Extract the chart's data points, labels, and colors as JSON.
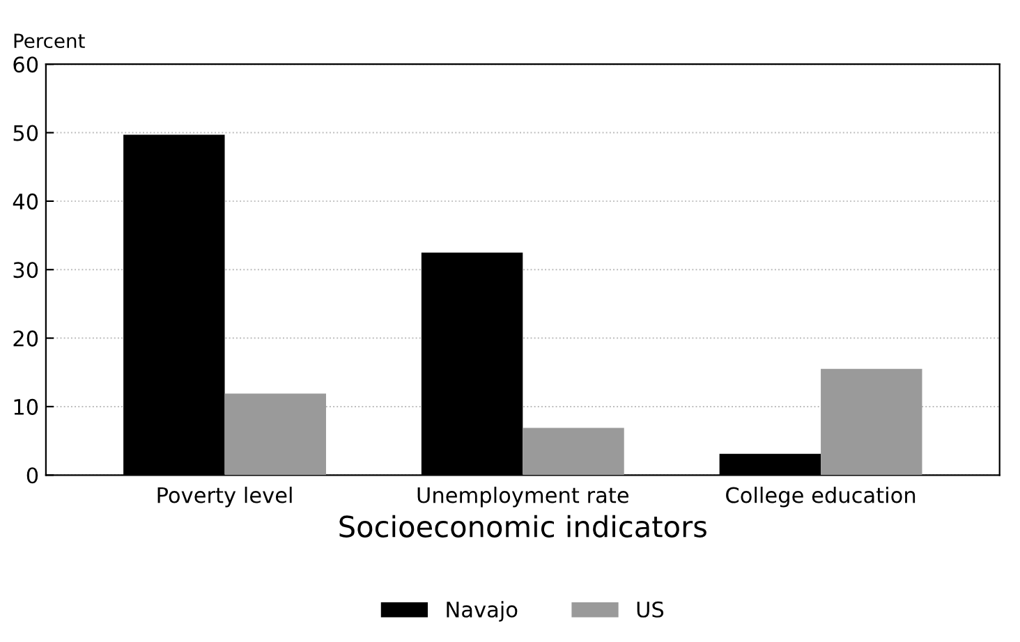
{
  "chart_data": {
    "type": "bar",
    "ylabel": "Percent",
    "xlabel": "Socioeconomic indicators",
    "categories": [
      "Poverty level",
      "Unemployment rate",
      "College education"
    ],
    "series": [
      {
        "name": "Navajo",
        "color": "#000000",
        "values": [
          49.7,
          32.5,
          3.1
        ]
      },
      {
        "name": "US",
        "color": "#9a9a9a",
        "values": [
          11.9,
          6.9,
          15.5
        ]
      }
    ],
    "ylim": [
      0,
      60
    ],
    "yticks": [
      0,
      10,
      20,
      30,
      40,
      50,
      60
    ],
    "grid": "y",
    "legend": "bottom"
  }
}
